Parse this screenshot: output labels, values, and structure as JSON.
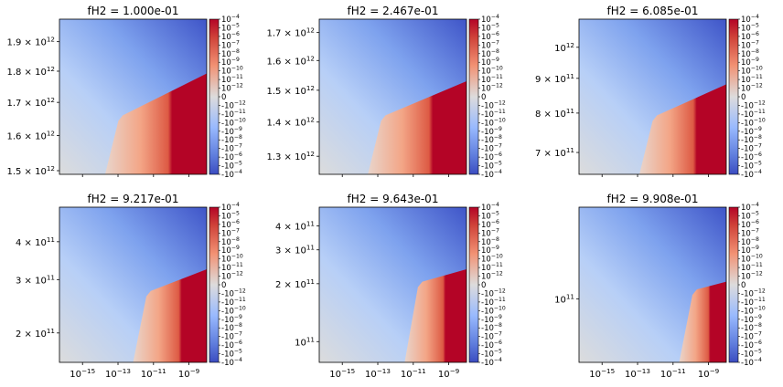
{
  "chart_data": {
    "type": "heatmap",
    "colormap": "coolwarm",
    "colorbar": {
      "scale": "symlog",
      "tick_labels": [
        "10^-4",
        "10^-5",
        "10^-6",
        "10^-7",
        "10^-8",
        "10^-9",
        "10^-10",
        "10^-11",
        "10^-12",
        "0",
        "-10^-12",
        "-10^-11",
        "-10^-10",
        "-10^-9",
        "-10^-8",
        "-10^-7",
        "-10^-6",
        "-10^-5",
        "-10^-4"
      ]
    },
    "x_axis": {
      "scale": "log",
      "tick_labels": [
        "10^-15",
        "10^-13",
        "10^-11",
        "10^-9"
      ],
      "tick_exponents": [
        -15,
        -13,
        -11,
        -9
      ],
      "range_exponent": [
        -16.3,
        -8.0
      ]
    },
    "panels": [
      {
        "title": "fH2 = 1.000e-01",
        "y_axis": {
          "scale": "log",
          "ylim": [
            1490000000000.0,
            1980000000000.0
          ],
          "tick_labels": [
            "1.5 × 10^12",
            "1.6 × 10^12",
            "1.7 × 10^12",
            "1.8 × 10^12",
            "1.9 × 10^12"
          ],
          "tick_values": [
            1500000000000.0,
            1600000000000.0,
            1700000000000.0,
            1800000000000.0,
            1900000000000.0
          ]
        },
        "boundary": [
          [
            0.4,
            0.4
          ],
          [
            1.0,
            0.65
          ]
        ],
        "kink": [
          0.43,
          0.38
        ]
      },
      {
        "title": "fH2 = 2.467e-01",
        "y_axis": {
          "scale": "log",
          "ylim": [
            1250000000000.0,
            1750000000000.0
          ],
          "tick_labels": [
            "1.3 × 10^12",
            "1.4 × 10^12",
            "1.5 × 10^12",
            "1.6 × 10^12",
            "1.7 × 10^12"
          ],
          "tick_values": [
            1300000000000.0,
            1400000000000.0,
            1500000000000.0,
            1600000000000.0,
            1700000000000.0
          ]
        },
        "boundary": [
          [
            0.45,
            0.38
          ],
          [
            1.0,
            0.6
          ]
        ],
        "kink": [
          0.45,
          0.38
        ]
      },
      {
        "title": "fH2 = 6.085e-01",
        "y_axis": {
          "scale": "log",
          "ylim": [
            650000000000.0,
            1100000000000.0
          ],
          "tick_labels": [
            "7 × 10^11",
            "8 × 10^11",
            "9 × 10^11",
            "10^12"
          ],
          "tick_values": [
            700000000000.0,
            800000000000.0,
            900000000000.0,
            1000000000000.0
          ]
        },
        "boundary": [
          [
            0.52,
            0.38
          ],
          [
            1.0,
            0.58
          ]
        ],
        "kink": [
          0.53,
          0.38
        ]
      },
      {
        "title": "fH2 = 9.217e-01",
        "y_axis": {
          "scale": "log",
          "ylim": [
            160000000000.0,
            520000000000.0
          ],
          "tick_labels": [
            "2 × 10^11",
            "3 × 10^11",
            "4 × 10^11"
          ],
          "tick_values": [
            200000000000.0,
            300000000000.0,
            400000000000.0
          ]
        },
        "boundary": [
          [
            0.6,
            0.47
          ],
          [
            1.0,
            0.6
          ]
        ],
        "kink": [
          0.62,
          0.46
        ]
      },
      {
        "title": "fH2 = 9.643e-01",
        "y_axis": {
          "scale": "log",
          "ylim": [
            78000000000.0,
            500000000000.0
          ],
          "tick_labels": [
            "10^11",
            "2 × 10^11",
            "3 × 10^11",
            "4 × 10^11"
          ],
          "tick_values": [
            100000000000.0,
            200000000000.0,
            300000000000.0,
            400000000000.0
          ]
        },
        "boundary": [
          [
            0.68,
            0.52
          ],
          [
            1.0,
            0.6
          ]
        ],
        "kink": [
          0.7,
          0.52
        ]
      },
      {
        "title": "fH2 = 9.908e-01",
        "y_axis": {
          "scale": "log",
          "ylim": [
            58000000000.0,
            220000000000.0
          ],
          "tick_labels": [
            "10^11"
          ],
          "tick_values": [
            100000000000.0
          ]
        },
        "boundary": [
          [
            0.79,
            0.47
          ],
          [
            1.0,
            0.52
          ]
        ],
        "kink": [
          0.8,
          0.47
        ]
      }
    ]
  }
}
